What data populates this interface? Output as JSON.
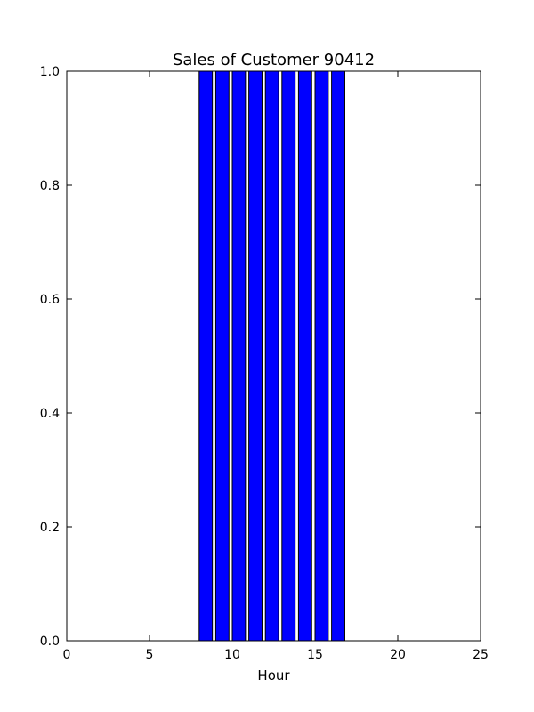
{
  "chart_data": {
    "type": "bar",
    "title": "Sales of Customer 90412",
    "xlabel": "Hour",
    "ylabel": "",
    "xlim": [
      0,
      25
    ],
    "ylim": [
      0,
      1
    ],
    "x_ticks": [
      0,
      5,
      10,
      15,
      20,
      25
    ],
    "y_ticks": [
      0.0,
      0.2,
      0.4,
      0.6,
      0.8,
      1.0
    ],
    "x_tick_labels": [
      "0",
      "5",
      "10",
      "15",
      "20",
      "25"
    ],
    "y_tick_labels": [
      "0.0",
      "0.2",
      "0.4",
      "0.6",
      "0.8",
      "1.0"
    ],
    "bar_width": 0.8,
    "bar_color": "#0000ff",
    "x": [
      0,
      1,
      2,
      3,
      4,
      5,
      6,
      7,
      8,
      9,
      10,
      11,
      12,
      13,
      14,
      15,
      16,
      17,
      18,
      19,
      20,
      21,
      22,
      23
    ],
    "values": [
      0,
      0,
      0,
      0,
      0,
      0,
      0,
      0,
      1,
      1,
      1,
      1,
      1,
      1,
      1,
      1,
      1,
      0,
      0,
      0,
      0,
      0,
      0,
      0
    ],
    "grid": false,
    "legend": "none"
  }
}
